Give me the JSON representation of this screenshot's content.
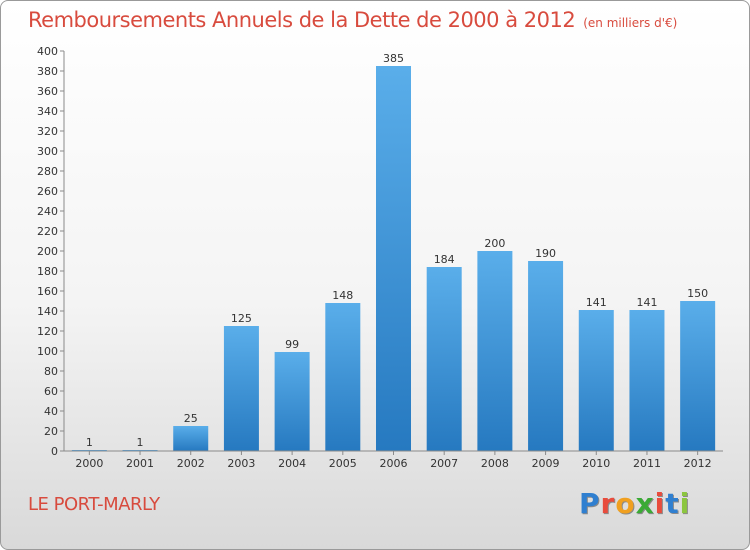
{
  "title": "Remboursements Annuels de la Dette de 2000 à 2012",
  "subtitle": "(en milliers d'€)",
  "city": "LE PORT-MARLY",
  "logo": {
    "text": "Proxiti",
    "letter_colors": [
      "#2f7fd0",
      "#e84c3d",
      "#f0a020",
      "#3aaa35",
      "#e84c3d",
      "#2f7fd0",
      "#8cc63f"
    ]
  },
  "colors": {
    "bar_light": "#5aaeea",
    "bar_dark": "#2679c0",
    "title": "#d84b3e"
  },
  "chart_data": {
    "type": "bar",
    "categories": [
      "2000",
      "2001",
      "2002",
      "2003",
      "2004",
      "2005",
      "2006",
      "2007",
      "2008",
      "2009",
      "2010",
      "2011",
      "2012"
    ],
    "values": [
      1,
      1,
      25,
      125,
      99,
      148,
      385,
      184,
      200,
      190,
      141,
      141,
      150
    ],
    "data_labels": [
      "1",
      "1",
      "25",
      "125",
      "99",
      "148",
      "385",
      "184",
      "200",
      "190",
      "141",
      "141",
      "150"
    ],
    "yticks": [
      0,
      20,
      40,
      60,
      80,
      100,
      120,
      140,
      160,
      180,
      200,
      220,
      240,
      260,
      280,
      300,
      320,
      340,
      360,
      380,
      400
    ],
    "ylim": [
      0,
      400
    ],
    "grid": false,
    "legend": "none"
  }
}
